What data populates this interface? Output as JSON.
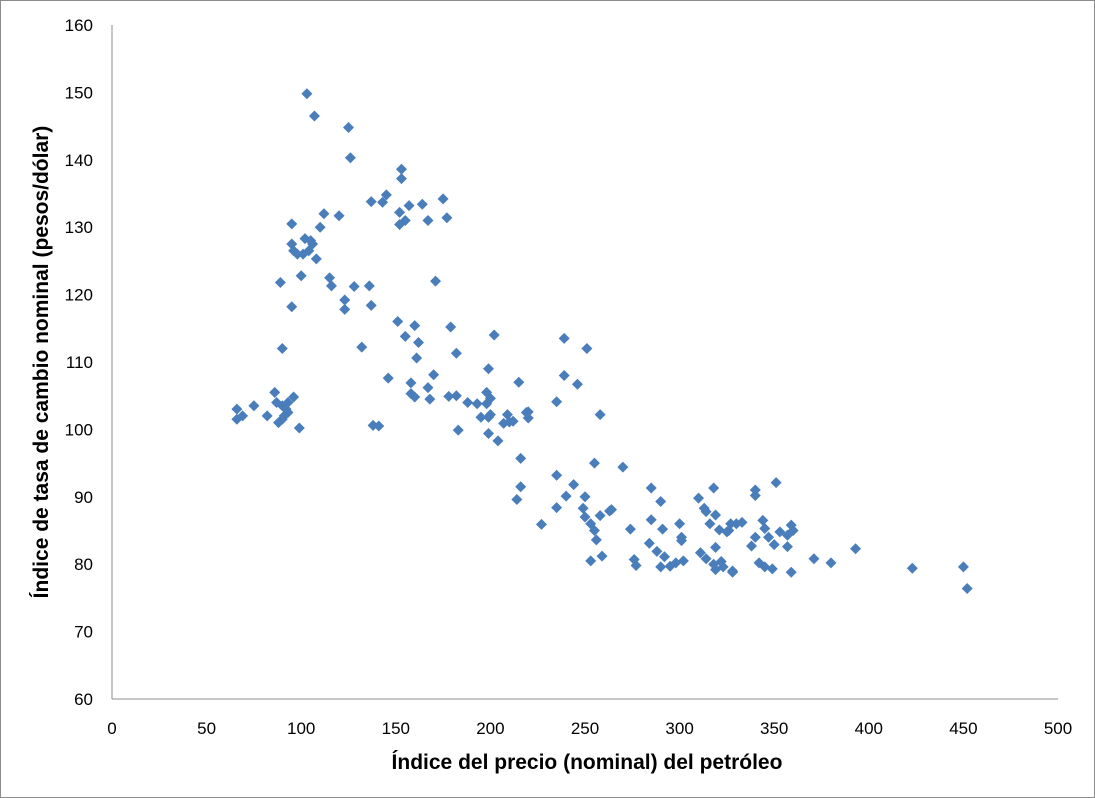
{
  "chart_data": {
    "type": "scatter",
    "title": "",
    "xlabel": "Índice del precio (nominal) del petróleo",
    "ylabel": "Índice de tasa de cambio nominal (pesos/dólar)",
    "xlim": [
      0,
      500
    ],
    "ylim": [
      60,
      160
    ],
    "xticks": [
      0,
      50,
      100,
      150,
      200,
      250,
      300,
      350,
      400,
      450,
      500
    ],
    "yticks": [
      60,
      70,
      80,
      90,
      100,
      110,
      120,
      130,
      140,
      150,
      160
    ],
    "grid": false,
    "legend": "none",
    "marker": "diamond",
    "marker_color": "#4a7ebb",
    "points": [
      [
        66,
        103
      ],
      [
        66,
        101.5
      ],
      [
        69,
        102
      ],
      [
        75,
        103.5
      ],
      [
        82,
        102
      ],
      [
        86,
        105.5
      ],
      [
        87,
        104
      ],
      [
        88,
        101
      ],
      [
        90,
        101.5
      ],
      [
        90,
        103.5
      ],
      [
        91,
        102
      ],
      [
        92,
        103
      ],
      [
        93,
        102.5
      ],
      [
        93,
        104
      ],
      [
        96,
        104.8
      ],
      [
        99,
        100.2
      ],
      [
        89,
        121.8
      ],
      [
        90,
        112
      ],
      [
        95,
        118.2
      ],
      [
        95,
        127.5
      ],
      [
        95,
        130.5
      ],
      [
        96,
        126.5
      ],
      [
        98,
        126
      ],
      [
        100,
        122.8
      ],
      [
        101,
        126
      ],
      [
        102,
        128.3
      ],
      [
        103,
        149.8
      ],
      [
        104,
        126.5
      ],
      [
        105,
        128
      ],
      [
        106,
        127.5
      ],
      [
        107,
        146.5
      ],
      [
        108,
        125.3
      ],
      [
        110,
        130
      ],
      [
        112,
        132
      ],
      [
        115,
        122.5
      ],
      [
        116,
        121.3
      ],
      [
        120,
        131.7
      ],
      [
        123,
        119.2
      ],
      [
        123,
        117.8
      ],
      [
        125,
        144.8
      ],
      [
        126,
        140.3
      ],
      [
        128,
        121.2
      ],
      [
        132,
        112.2
      ],
      [
        136,
        121.3
      ],
      [
        137,
        133.8
      ],
      [
        137,
        118.4
      ],
      [
        138,
        100.6
      ],
      [
        141,
        100.5
      ],
      [
        143,
        133.7
      ],
      [
        145,
        134.8
      ],
      [
        146,
        107.6
      ],
      [
        151,
        116
      ],
      [
        152,
        132.2
      ],
      [
        152,
        130.4
      ],
      [
        153,
        137.2
      ],
      [
        153,
        138.6
      ],
      [
        155,
        131
      ],
      [
        155,
        113.8
      ],
      [
        157,
        133.2
      ],
      [
        158,
        105.3
      ],
      [
        158,
        106.9
      ],
      [
        160,
        115.4
      ],
      [
        160,
        104.8
      ],
      [
        161,
        110.6
      ],
      [
        162,
        112.9
      ],
      [
        164,
        133.4
      ],
      [
        167,
        131
      ],
      [
        167,
        106.2
      ],
      [
        168,
        104.5
      ],
      [
        170,
        108.1
      ],
      [
        171,
        122
      ],
      [
        175,
        134.2
      ],
      [
        177,
        131.4
      ],
      [
        178,
        104.9
      ],
      [
        179,
        115.2
      ],
      [
        182,
        105
      ],
      [
        182,
        111.3
      ],
      [
        183,
        99.9
      ],
      [
        188,
        104
      ],
      [
        193,
        103.8
      ],
      [
        195,
        101.8
      ],
      [
        198,
        103.8
      ],
      [
        198,
        105.5
      ],
      [
        199,
        109
      ],
      [
        199,
        101.8
      ],
      [
        199,
        99.4
      ],
      [
        200,
        104.6
      ],
      [
        200,
        102.2
      ],
      [
        202,
        114
      ],
      [
        204,
        98.3
      ],
      [
        207,
        100.9
      ],
      [
        209,
        102.2
      ],
      [
        210,
        101.1
      ],
      [
        212,
        101.2
      ],
      [
        214,
        89.6
      ],
      [
        215,
        107
      ],
      [
        216,
        95.7
      ],
      [
        216,
        91.5
      ],
      [
        219,
        102.5
      ],
      [
        220,
        101.7
      ],
      [
        220,
        102.6
      ],
      [
        227,
        85.9
      ],
      [
        235,
        104.1
      ],
      [
        235,
        88.4
      ],
      [
        235,
        93.2
      ],
      [
        239,
        108
      ],
      [
        239,
        113.5
      ],
      [
        240,
        90.1
      ],
      [
        244,
        91.8
      ],
      [
        246,
        106.7
      ],
      [
        249,
        88.3
      ],
      [
        250,
        87
      ],
      [
        250,
        90
      ],
      [
        251,
        112
      ],
      [
        253,
        80.5
      ],
      [
        253,
        86
      ],
      [
        255,
        95
      ],
      [
        255,
        85
      ],
      [
        256,
        83.6
      ],
      [
        258,
        87.2
      ],
      [
        258,
        102.2
      ],
      [
        259,
        81.2
      ],
      [
        263,
        87.9
      ],
      [
        264,
        88.1
      ],
      [
        270,
        94.4
      ],
      [
        274,
        85.2
      ],
      [
        276,
        80.7
      ],
      [
        277,
        79.8
      ],
      [
        284,
        83.1
      ],
      [
        285,
        86.6
      ],
      [
        285,
        91.3
      ],
      [
        288,
        81.9
      ],
      [
        290,
        89.3
      ],
      [
        290,
        79.6
      ],
      [
        291,
        85.2
      ],
      [
        292,
        81.1
      ],
      [
        295,
        79.7
      ],
      [
        298,
        80.2
      ],
      [
        300,
        86
      ],
      [
        301,
        83.5
      ],
      [
        301,
        84
      ],
      [
        302,
        80.5
      ],
      [
        310,
        89.8
      ],
      [
        311,
        81.7
      ],
      [
        313,
        88.3
      ],
      [
        314,
        80.8
      ],
      [
        314,
        87.8
      ],
      [
        316,
        86
      ],
      [
        318,
        91.3
      ],
      [
        318,
        80
      ],
      [
        319,
        87.3
      ],
      [
        319,
        79.2
      ],
      [
        319,
        82.5
      ],
      [
        321,
        85.1
      ],
      [
        322,
        80.4
      ],
      [
        323,
        79.6
      ],
      [
        325,
        84.8
      ],
      [
        326,
        85
      ],
      [
        327,
        86
      ],
      [
        328,
        78.8
      ],
      [
        328,
        79
      ],
      [
        330,
        86
      ],
      [
        333,
        86.2
      ],
      [
        338,
        82.7
      ],
      [
        340,
        84
      ],
      [
        340,
        91
      ],
      [
        340,
        90.2
      ],
      [
        342,
        80.2
      ],
      [
        344,
        86.5
      ],
      [
        345,
        79.6
      ],
      [
        345,
        85.3
      ],
      [
        347,
        84
      ],
      [
        349,
        79.3
      ],
      [
        350,
        82.9
      ],
      [
        351,
        92.1
      ],
      [
        353,
        84.8
      ],
      [
        357,
        84.3
      ],
      [
        357,
        82.6
      ],
      [
        359,
        85.8
      ],
      [
        359,
        78.8
      ],
      [
        360,
        85
      ],
      [
        371,
        80.8
      ],
      [
        380,
        80.2
      ],
      [
        393,
        82.3
      ],
      [
        423,
        79.4
      ],
      [
        450,
        79.6
      ],
      [
        452,
        76.4
      ]
    ]
  }
}
